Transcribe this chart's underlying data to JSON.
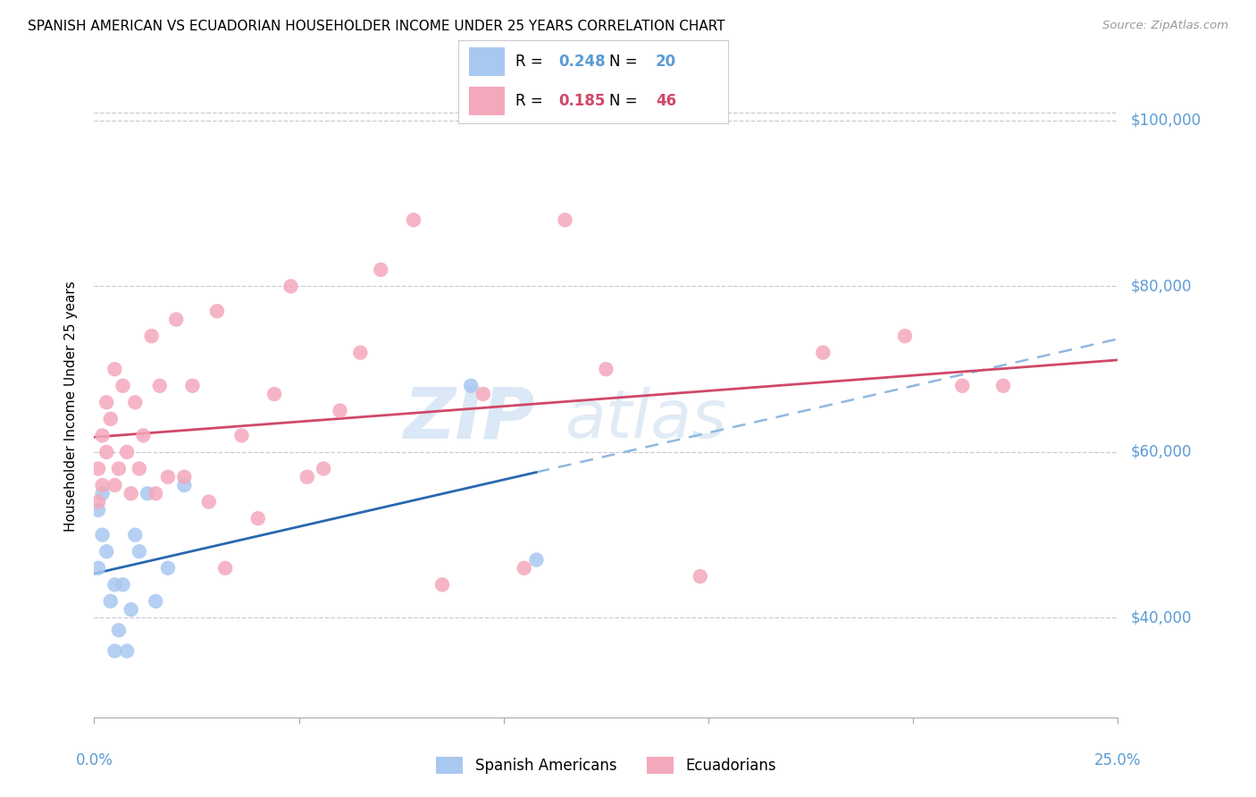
{
  "title": "SPANISH AMERICAN VS ECUADORIAN HOUSEHOLDER INCOME UNDER 25 YEARS CORRELATION CHART",
  "source": "Source: ZipAtlas.com",
  "ylabel": "Householder Income Under 25 years",
  "legend_label1": "Spanish Americans",
  "legend_label2": "Ecuadorians",
  "R1": "0.248",
  "N1": "20",
  "R2": "0.185",
  "N2": "46",
  "xmin": 0.0,
  "xmax": 0.25,
  "ymin": 28000,
  "ymax": 103000,
  "yticks": [
    40000,
    60000,
    80000,
    100000
  ],
  "ytick_labels": [
    "$40,000",
    "$60,000",
    "$80,000",
    "$100,000"
  ],
  "color_blue": "#A8C8F0",
  "color_pink": "#F4A8BC",
  "line_color_blue": "#2868B0",
  "line_color_pink": "#D04868",
  "line_color_dash": "#90B8E0",
  "grid_color": "#C8CAD8",
  "watermark_color": "#C8DCF0",
  "sa_x": [
    0.001,
    0.001,
    0.002,
    0.002,
    0.003,
    0.004,
    0.005,
    0.005,
    0.006,
    0.007,
    0.008,
    0.009,
    0.01,
    0.011,
    0.013,
    0.015,
    0.018,
    0.022,
    0.092,
    0.108
  ],
  "sa_y": [
    46000,
    53000,
    50000,
    55000,
    48000,
    42000,
    36000,
    44000,
    38500,
    44000,
    36000,
    41000,
    50000,
    48000,
    55000,
    42000,
    46000,
    56000,
    68000,
    47000
  ],
  "ec_x": [
    0.001,
    0.001,
    0.002,
    0.002,
    0.003,
    0.003,
    0.004,
    0.005,
    0.005,
    0.006,
    0.007,
    0.008,
    0.009,
    0.01,
    0.011,
    0.012,
    0.014,
    0.015,
    0.016,
    0.018,
    0.02,
    0.022,
    0.024,
    0.028,
    0.03,
    0.032,
    0.036,
    0.04,
    0.044,
    0.048,
    0.052,
    0.056,
    0.06,
    0.065,
    0.07,
    0.078,
    0.085,
    0.095,
    0.105,
    0.115,
    0.125,
    0.148,
    0.178,
    0.198,
    0.212,
    0.222
  ],
  "ec_y": [
    58000,
    54000,
    56000,
    62000,
    66000,
    60000,
    64000,
    56000,
    70000,
    58000,
    68000,
    60000,
    55000,
    66000,
    58000,
    62000,
    74000,
    55000,
    68000,
    57000,
    76000,
    57000,
    68000,
    54000,
    77000,
    46000,
    62000,
    52000,
    67000,
    80000,
    57000,
    58000,
    65000,
    72000,
    82000,
    88000,
    44000,
    67000,
    46000,
    88000,
    70000,
    45000,
    72000,
    74000,
    68000,
    68000
  ]
}
